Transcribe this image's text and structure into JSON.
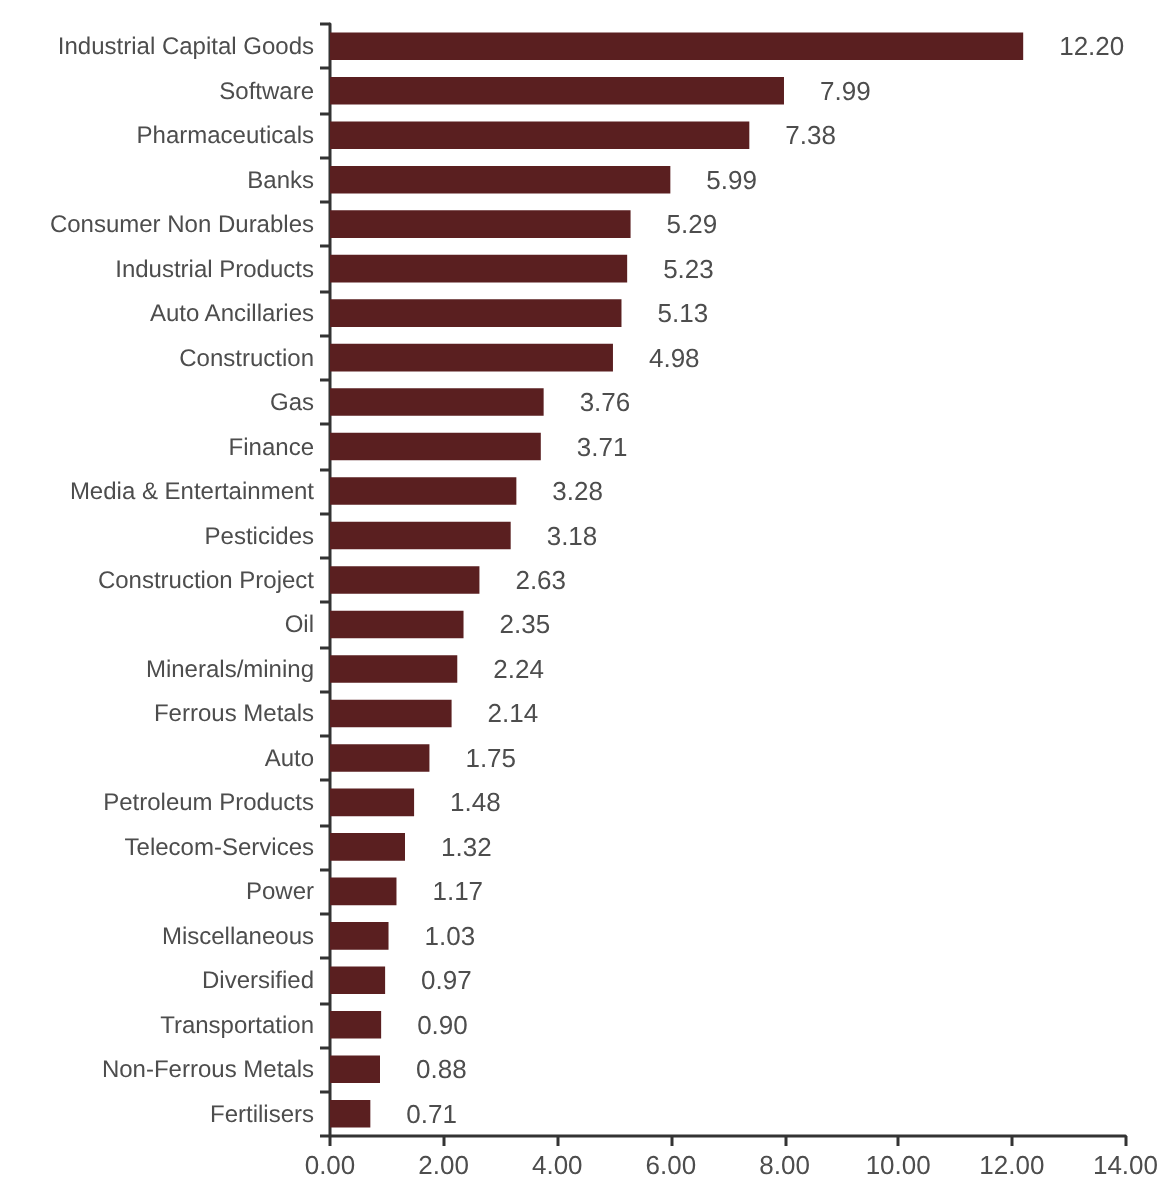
{
  "chart_data": {
    "type": "bar",
    "orientation": "horizontal",
    "categories": [
      "Industrial Capital Goods",
      "Software",
      "Pharmaceuticals",
      "Banks",
      "Consumer Non Durables",
      "Industrial Products",
      "Auto Ancillaries",
      "Construction",
      "Gas",
      "Finance",
      "Media & Entertainment",
      "Pesticides",
      "Construction Project",
      "Oil",
      "Minerals/mining",
      "Ferrous Metals",
      "Auto",
      "Petroleum Products",
      "Telecom-Services",
      "Power",
      "Miscellaneous",
      "Diversified",
      "Transportation",
      "Non-Ferrous Metals",
      "Fertilisers"
    ],
    "values": [
      12.2,
      7.99,
      7.38,
      5.99,
      5.29,
      5.23,
      5.13,
      4.98,
      3.76,
      3.71,
      3.28,
      3.18,
      2.63,
      2.35,
      2.24,
      2.14,
      1.75,
      1.48,
      1.32,
      1.17,
      1.03,
      0.97,
      0.9,
      0.88,
      0.71
    ],
    "value_labels": [
      "12.20",
      "7.99",
      "7.38",
      "5.99",
      "5.29",
      "5.23",
      "5.13",
      "4.98",
      "3.76",
      "3.71",
      "3.28",
      "3.18",
      "2.63",
      "2.35",
      "2.24",
      "2.14",
      "1.75",
      "1.48",
      "1.32",
      "1.17",
      "1.03",
      "0.97",
      "0.90",
      "0.88",
      "0.71"
    ],
    "color": "#5a1f20",
    "xlim": [
      0,
      14
    ],
    "xticks": [
      {
        "value": 0,
        "label": "0.00"
      },
      {
        "value": 2,
        "label": "2.00"
      },
      {
        "value": 4,
        "label": "4.00"
      },
      {
        "value": 6,
        "label": "6.00"
      },
      {
        "value": 8,
        "label": "8.00"
      },
      {
        "value": 10,
        "label": "10.00"
      },
      {
        "value": 12,
        "label": "12.00"
      },
      {
        "value": 14,
        "label": "14.00"
      }
    ],
    "grid": false
  }
}
